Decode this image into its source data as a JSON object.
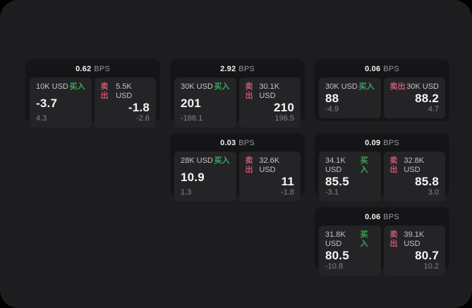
{
  "labels": {
    "buy": "买入",
    "sell": "卖出",
    "bps_unit": "BPS"
  },
  "colors": {
    "buy_green": "#3fa55c",
    "sell_red": "#c9566e",
    "panel_bg": "#1d1d1f",
    "card_bg": "#151517",
    "subpanel_bg": "#242427"
  },
  "cards": [
    {
      "row": 1,
      "col": 1,
      "bps": "0.62",
      "buy": {
        "amount": "10K USD",
        "value": "-3.7",
        "delta": "4.3"
      },
      "sell": {
        "amount": "5.5K USD",
        "value": "-1.8",
        "delta": "-2.6"
      }
    },
    {
      "row": 1,
      "col": 2,
      "bps": "2.92",
      "buy": {
        "amount": "30K USD",
        "value": "201",
        "delta": "-188.1"
      },
      "sell": {
        "amount": "30.1K USD",
        "value": "210",
        "delta": "196.5"
      }
    },
    {
      "row": 1,
      "col": 3,
      "bps": "0.06",
      "buy": {
        "amount": "30K USD",
        "value": "88",
        "delta": "-4.9"
      },
      "sell": {
        "amount": "30K USD",
        "value": "88.2",
        "delta": "4.7"
      }
    },
    {
      "row": 2,
      "col": 2,
      "bps": "0.03",
      "buy": {
        "amount": "28K USD",
        "value": "10.9",
        "delta": "1.3"
      },
      "sell": {
        "amount": "32.6K USD",
        "value": "11",
        "delta": "-1.8"
      }
    },
    {
      "row": 2,
      "col": 3,
      "bps": "0.09",
      "buy": {
        "amount": "34.1K USD",
        "value": "85.5",
        "delta": "-3.1"
      },
      "sell": {
        "amount": "32.8K USD",
        "value": "85.8",
        "delta": "3.0"
      }
    },
    {
      "row": 3,
      "col": 3,
      "bps": "0.06",
      "buy": {
        "amount": "31.8K USD",
        "value": "80.5",
        "delta": "-10.8"
      },
      "sell": {
        "amount": "39.1K USD",
        "value": "80.7",
        "delta": "10.2"
      }
    }
  ]
}
